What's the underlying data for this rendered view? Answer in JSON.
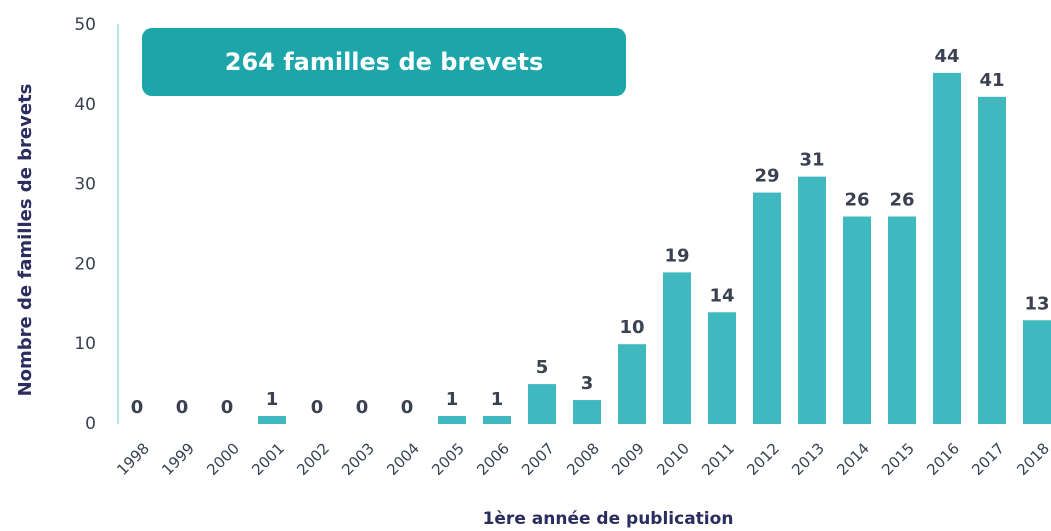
{
  "chart_data": {
    "type": "bar",
    "annotation": "264 familles de brevets",
    "x_label": "1ère année de publication",
    "y_label": "Nombre de familles de brevets",
    "categories": [
      "1998",
      "1999",
      "2000",
      "2001",
      "2002",
      "2003",
      "2004",
      "2005",
      "2006",
      "2007",
      "2008",
      "2009",
      "2010",
      "2011",
      "2012",
      "2013",
      "2014",
      "2015",
      "2016",
      "2017",
      "2018"
    ],
    "values": [
      0,
      0,
      0,
      1,
      0,
      0,
      0,
      1,
      1,
      5,
      3,
      10,
      19,
      14,
      29,
      31,
      26,
      26,
      44,
      41,
      13
    ],
    "color": "#3fb8c0",
    "ylim": [
      0,
      50
    ],
    "yticks": [
      0,
      10,
      20,
      30,
      40,
      50
    ],
    "grid": false
  }
}
